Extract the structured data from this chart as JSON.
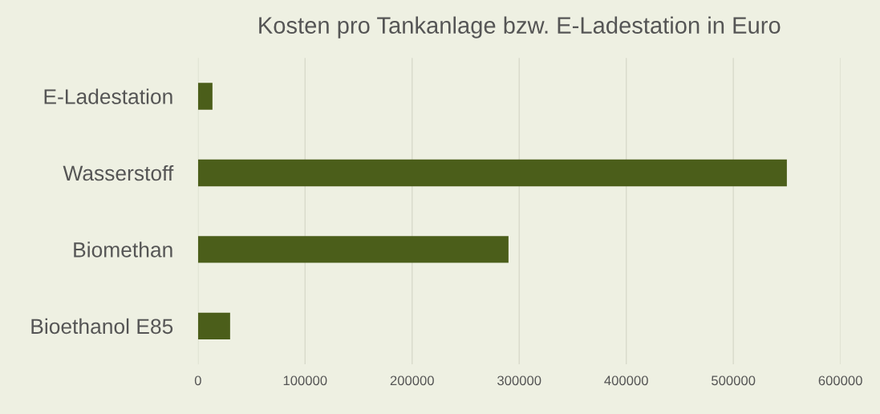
{
  "chart_data": {
    "type": "bar",
    "orientation": "horizontal",
    "title": "Kosten pro Tankanlage bzw. E-Ladestation in Euro",
    "categories": [
      "E-Ladestation",
      "Wasserstoff",
      "Biomethan",
      "Bioethanol E85"
    ],
    "values": [
      13500,
      550000,
      290000,
      30000
    ],
    "color": "#4b5e1a",
    "xlim": [
      0,
      600000
    ],
    "xticks": [
      0,
      100000,
      200000,
      300000,
      400000,
      500000,
      600000
    ],
    "grid": "x"
  }
}
